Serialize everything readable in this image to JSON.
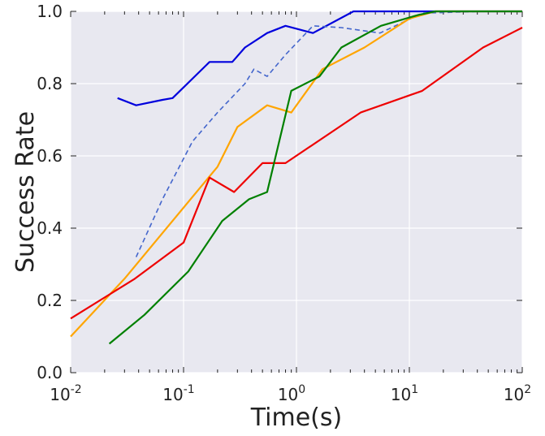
{
  "chart_data": {
    "type": "line",
    "title": "",
    "xlabel": "Time(s)",
    "ylabel": "Success Rate",
    "xscale": "log",
    "xlim": [
      0.01,
      100
    ],
    "ylim": [
      0.0,
      1.0
    ],
    "grid": true,
    "background": "#e8e8f0",
    "x_tick_labels": [
      {
        "base": "10",
        "exp": "-2"
      },
      {
        "base": "10",
        "exp": "-1"
      },
      {
        "base": "10",
        "exp": "0"
      },
      {
        "base": "10",
        "exp": "1"
      },
      {
        "base": "10",
        "exp": "2"
      }
    ],
    "y_tick_labels": [
      "0.0",
      "0.2",
      "0.4",
      "0.6",
      "0.8",
      "1.0"
    ],
    "series": [
      {
        "color": "#0000dd",
        "style": "solid",
        "points": [
          [
            0.026,
            0.76
          ],
          [
            0.038,
            0.74
          ],
          [
            0.065,
            0.755
          ],
          [
            0.08,
            0.76
          ],
          [
            0.17,
            0.86
          ],
          [
            0.27,
            0.86
          ],
          [
            0.35,
            0.9
          ],
          [
            0.55,
            0.94
          ],
          [
            0.8,
            0.96
          ],
          [
            1.4,
            0.94
          ],
          [
            3.2,
            1.0
          ],
          [
            100,
            1.0
          ]
        ]
      },
      {
        "color": "#4466cc",
        "style": "dashed",
        "points": [
          [
            0.038,
            0.32
          ],
          [
            0.065,
            0.48
          ],
          [
            0.12,
            0.64
          ],
          [
            0.2,
            0.72
          ],
          [
            0.35,
            0.8
          ],
          [
            0.42,
            0.84
          ],
          [
            0.55,
            0.82
          ],
          [
            0.8,
            0.88
          ],
          [
            1.4,
            0.96
          ],
          [
            2.5,
            0.955
          ],
          [
            5.5,
            0.94
          ],
          [
            13,
            0.995
          ],
          [
            45,
            1.0
          ],
          [
            100,
            1.0
          ]
        ]
      },
      {
        "color": "#ffa500",
        "style": "solid",
        "points": [
          [
            0.01,
            0.1
          ],
          [
            0.03,
            0.26
          ],
          [
            0.2,
            0.57
          ],
          [
            0.3,
            0.68
          ],
          [
            0.55,
            0.74
          ],
          [
            0.9,
            0.72
          ],
          [
            1.7,
            0.84
          ],
          [
            4,
            0.9
          ],
          [
            10,
            0.98
          ],
          [
            17,
            1.0
          ],
          [
            100,
            1.0
          ]
        ]
      },
      {
        "color": "#ee0000",
        "style": "solid",
        "points": [
          [
            0.01,
            0.15
          ],
          [
            0.037,
            0.26
          ],
          [
            0.1,
            0.36
          ],
          [
            0.17,
            0.54
          ],
          [
            0.28,
            0.5
          ],
          [
            0.5,
            0.58
          ],
          [
            0.8,
            0.58
          ],
          [
            3.7,
            0.72
          ],
          [
            13,
            0.78
          ],
          [
            45,
            0.9
          ],
          [
            100,
            0.955
          ]
        ]
      },
      {
        "color": "#008000",
        "style": "solid",
        "points": [
          [
            0.022,
            0.08
          ],
          [
            0.045,
            0.16
          ],
          [
            0.11,
            0.28
          ],
          [
            0.22,
            0.42
          ],
          [
            0.38,
            0.48
          ],
          [
            0.55,
            0.5
          ],
          [
            0.9,
            0.78
          ],
          [
            1.6,
            0.82
          ],
          [
            2.5,
            0.9
          ],
          [
            5.6,
            0.96
          ],
          [
            12,
            0.99
          ],
          [
            17,
            1.0
          ],
          [
            100,
            1.0
          ]
        ]
      }
    ]
  }
}
